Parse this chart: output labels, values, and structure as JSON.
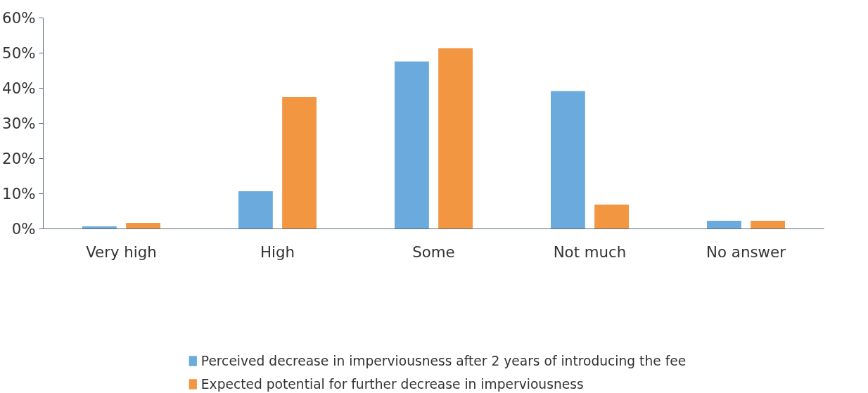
{
  "chart_data": {
    "type": "bar",
    "categories": [
      "Very high",
      "High",
      "Some",
      "Not much",
      "No answer"
    ],
    "series": [
      {
        "name": "Perceived decrease in imperviousness after 2 years of introducing the fee",
        "color": "#6aaadc",
        "values": [
          0.7,
          10.7,
          47.6,
          39.2,
          2.3
        ]
      },
      {
        "name": "Expected potential for further decrease in imperviousness",
        "color": "#f29642",
        "values": [
          1.7,
          37.5,
          51.4,
          6.9,
          2.3
        ]
      }
    ],
    "ylim": [
      0,
      60
    ],
    "yticks": [
      {
        "value": 0,
        "label": "0%"
      },
      {
        "value": 10,
        "label": "10%"
      },
      {
        "value": 20,
        "label": "20%"
      },
      {
        "value": 30,
        "label": "30%"
      },
      {
        "value": 40,
        "label": "40%"
      },
      {
        "value": 50,
        "label": "50%"
      },
      {
        "value": 60,
        "label": "60%"
      }
    ],
    "grid": false,
    "legend": "bottom"
  }
}
